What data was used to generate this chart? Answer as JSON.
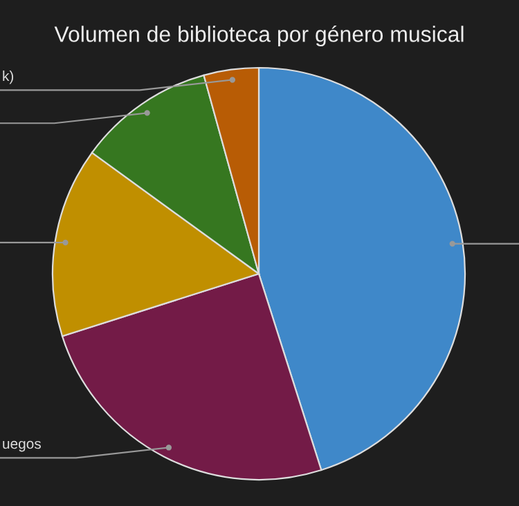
{
  "chart_data": {
    "type": "pie",
    "title": "Volumen de biblioteca por género musical",
    "categories": [
      null,
      "uegos",
      null,
      null,
      "k)"
    ],
    "values": [
      45.1,
      25,
      14.9,
      10.7,
      4.3
    ],
    "colors": [
      "#3f88c9",
      "#731b47",
      "#c08f00",
      "#367720",
      "#b85c05"
    ],
    "legend": false
  }
}
